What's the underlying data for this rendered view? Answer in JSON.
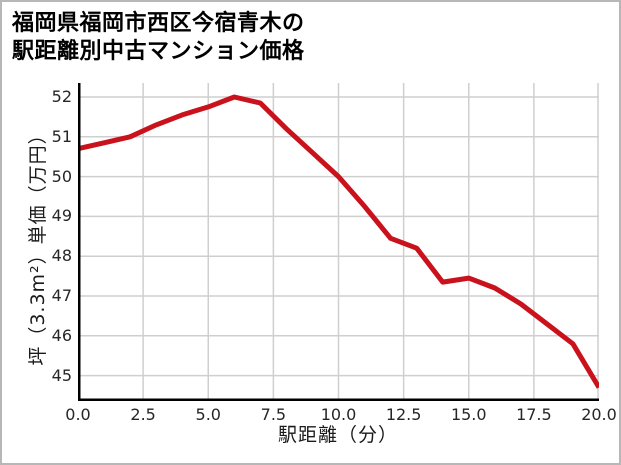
{
  "title": {
    "line1": "福岡県福岡市西区今宿青木の",
    "line2": "駅距離別中古マンション価格"
  },
  "chart_data": {
    "type": "line",
    "title": "福岡県福岡市西区今宿青木の駅距離別中古マンション価格",
    "xlabel": "駅距離（分）",
    "ylabel": "坪（3.3m²）単価（万円）",
    "x": [
      0,
      1,
      2,
      3,
      4,
      5,
      6,
      7,
      8,
      9,
      10,
      11,
      12,
      13,
      14,
      15,
      16,
      17,
      18,
      19,
      20
    ],
    "values": [
      50.7,
      50.85,
      51.0,
      51.3,
      51.55,
      51.75,
      52.0,
      51.85,
      51.2,
      50.6,
      50.0,
      49.25,
      48.45,
      48.2,
      47.35,
      47.45,
      47.2,
      46.8,
      46.3,
      45.8,
      44.7
    ],
    "xlim": [
      0,
      20
    ],
    "ylim": [
      44.4,
      52.35
    ],
    "xticks": [
      0,
      2.5,
      5,
      7.5,
      10,
      12.5,
      15,
      17.5,
      20
    ],
    "xtick_labels": [
      "0.0",
      "2.5",
      "5.0",
      "7.5",
      "10.0",
      "12.5",
      "15.0",
      "17.5",
      "20.0"
    ],
    "yticks": [
      45,
      46,
      47,
      48,
      49,
      50,
      51,
      52
    ],
    "ytick_labels": [
      "45",
      "46",
      "47",
      "48",
      "49",
      "50",
      "51",
      "52"
    ],
    "grid": true,
    "legend": "none",
    "line_color": "#c9121c",
    "grid_color": "#cfcfcf",
    "spine_color": "#000000",
    "line_width": 5
  }
}
